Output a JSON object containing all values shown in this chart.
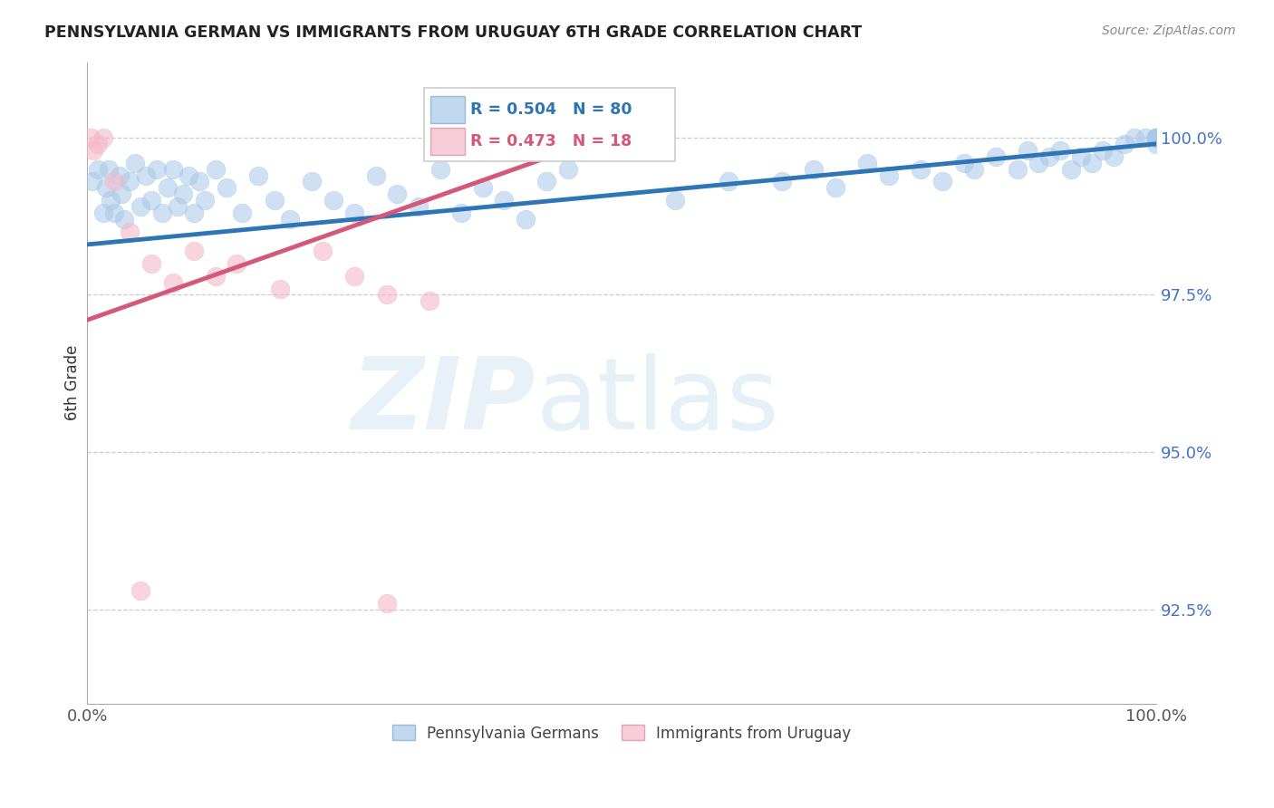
{
  "title": "PENNSYLVANIA GERMAN VS IMMIGRANTS FROM URUGUAY 6TH GRADE CORRELATION CHART",
  "source": "Source: ZipAtlas.com",
  "ylabel": "6th Grade",
  "xlim": [
    0.0,
    100.0
  ],
  "ylim": [
    91.0,
    101.2
  ],
  "yticks": [
    92.5,
    95.0,
    97.5,
    100.0
  ],
  "ytick_labels": [
    "92.5%",
    "95.0%",
    "97.5%",
    "100.0%"
  ],
  "blue_R": 0.504,
  "blue_N": 80,
  "pink_R": 0.473,
  "pink_N": 18,
  "blue_color": "#a8c8e8",
  "pink_color": "#f4b8c8",
  "blue_line_color": "#2e75b6",
  "pink_line_color": "#d45878",
  "legend_label_blue": "Pennsylvania Germans",
  "legend_label_pink": "Immigrants from Uruguay",
  "blue_trend_x": [
    0.0,
    100.0
  ],
  "blue_trend_y": [
    98.3,
    99.9
  ],
  "pink_trend_x": [
    0.0,
    45.0
  ],
  "pink_trend_y": [
    97.1,
    99.8
  ]
}
